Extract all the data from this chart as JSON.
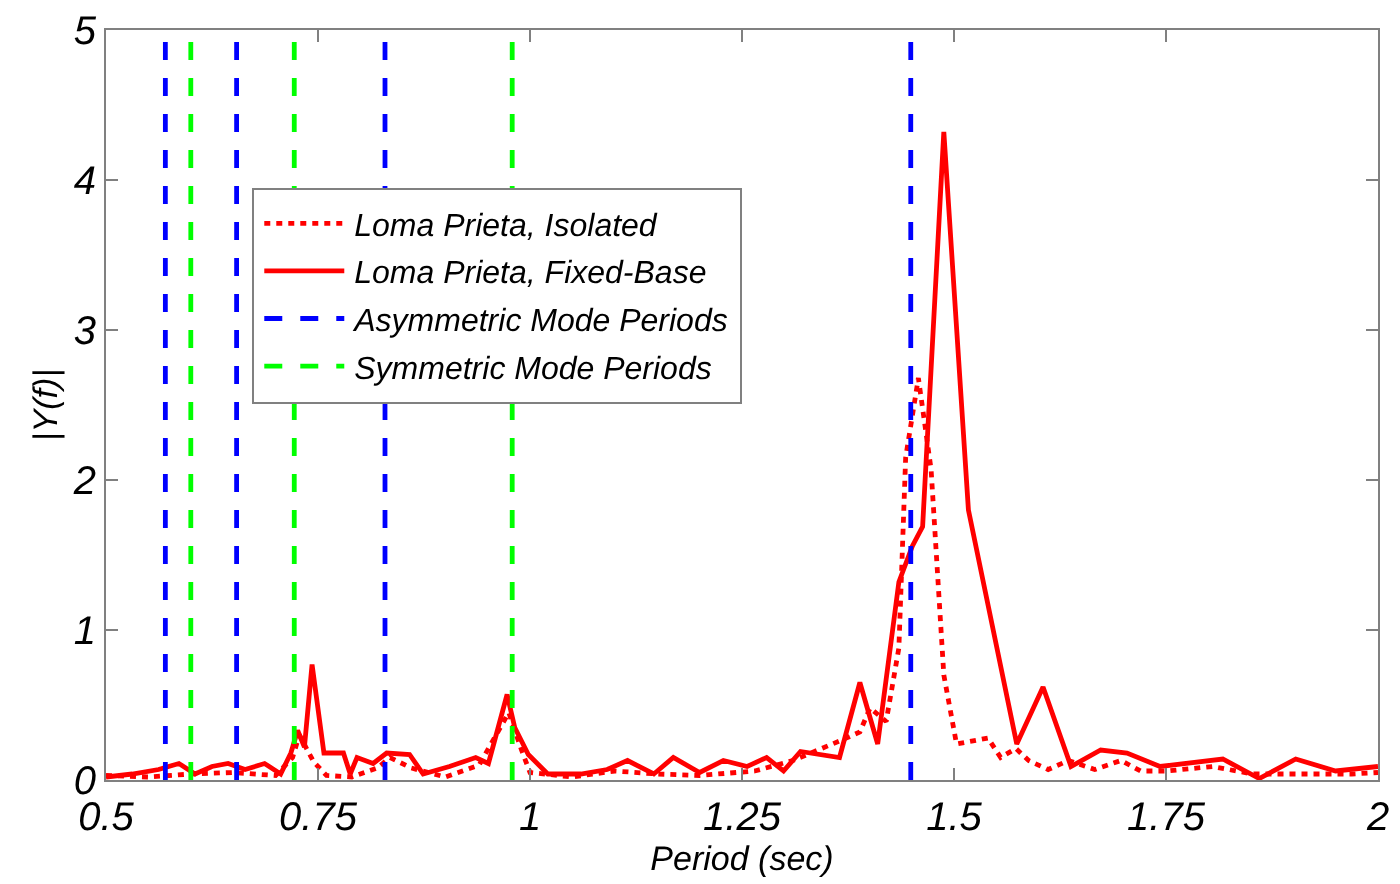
{
  "chart_data": {
    "type": "line",
    "xlabel": "Period (sec)",
    "ylabel": "|Y(f)|",
    "xlim": [
      0.5,
      2
    ],
    "xticks": [
      0.5,
      0.75,
      1,
      1.25,
      1.5,
      1.75,
      2
    ],
    "ylim": [
      0,
      5
    ],
    "yticks": [
      0,
      1,
      2,
      3,
      4,
      5
    ],
    "legend": "left",
    "marker": "none",
    "series": [
      {
        "name": "Loma Prieta, Isolated",
        "color": "#ff0000",
        "line_style": "dotted",
        "x": [
          0.5,
          0.55,
          0.6,
          0.65,
          0.7,
          0.72,
          0.728,
          0.745,
          0.76,
          0.79,
          0.82,
          0.835,
          0.86,
          0.9,
          0.94,
          0.965,
          0.975,
          0.99,
          1.0,
          1.05,
          1.1,
          1.15,
          1.2,
          1.265,
          1.31,
          1.365,
          1.389,
          1.401,
          1.42,
          1.435,
          1.443,
          1.458,
          1.473,
          1.488,
          1.503,
          1.54,
          1.555,
          1.573,
          1.588,
          1.611,
          1.635,
          1.666,
          1.697,
          1.72,
          1.751,
          1.805,
          1.852,
          1.899,
          1.969,
          2.0
        ],
        "values": [
          0.03,
          0.02,
          0.04,
          0.05,
          0.03,
          0.15,
          0.3,
          0.12,
          0.03,
          0.02,
          0.08,
          0.15,
          0.08,
          0.02,
          0.1,
          0.35,
          0.45,
          0.2,
          0.05,
          0.02,
          0.06,
          0.04,
          0.03,
          0.06,
          0.13,
          0.26,
          0.32,
          0.48,
          0.39,
          0.88,
          2.15,
          2.68,
          2.07,
          0.7,
          0.24,
          0.28,
          0.15,
          0.21,
          0.13,
          0.07,
          0.13,
          0.07,
          0.13,
          0.06,
          0.06,
          0.09,
          0.04,
          0.04,
          0.04,
          0.05
        ]
      },
      {
        "name": "Loma Prieta, Fixed-Base",
        "color": "#ff0000",
        "line_style": "solid",
        "x": [
          0.5,
          0.531,
          0.562,
          0.586,
          0.605,
          0.625,
          0.644,
          0.664,
          0.687,
          0.706,
          0.718,
          0.726,
          0.734,
          0.743,
          0.757,
          0.78,
          0.788,
          0.796,
          0.815,
          0.831,
          0.858,
          0.874,
          0.905,
          0.936,
          0.951,
          0.973,
          0.982,
          0.998,
          1.021,
          1.06,
          1.091,
          1.115,
          1.146,
          1.169,
          1.2,
          1.228,
          1.256,
          1.279,
          1.299,
          1.319,
          1.365,
          1.389,
          1.41,
          1.435,
          1.451,
          1.463,
          1.488,
          1.517,
          1.574,
          1.605,
          1.638,
          1.673,
          1.704,
          1.743,
          1.817,
          1.86,
          1.903,
          1.95,
          2.0
        ],
        "values": [
          0.02,
          0.04,
          0.07,
          0.11,
          0.04,
          0.09,
          0.11,
          0.07,
          0.11,
          0.04,
          0.18,
          0.33,
          0.22,
          0.77,
          0.18,
          0.18,
          0.04,
          0.15,
          0.11,
          0.18,
          0.17,
          0.04,
          0.09,
          0.15,
          0.11,
          0.57,
          0.35,
          0.17,
          0.04,
          0.04,
          0.07,
          0.13,
          0.04,
          0.15,
          0.05,
          0.13,
          0.09,
          0.15,
          0.06,
          0.19,
          0.15,
          0.65,
          0.24,
          1.32,
          1.56,
          1.69,
          4.32,
          1.8,
          0.24,
          0.62,
          0.09,
          0.2,
          0.18,
          0.09,
          0.14,
          0.01,
          0.14,
          0.06,
          0.09
        ]
      },
      {
        "name": "Asymmetric Mode Periods",
        "color": "#0000ff",
        "line_style": "dashed",
        "x": [
          0.57,
          0.57,
          null,
          0.654,
          0.654,
          null,
          0.829,
          0.829,
          null,
          1.449,
          1.449
        ],
        "values": [
          0,
          5,
          null,
          0,
          5,
          null,
          0,
          5,
          null,
          0,
          5
        ]
      },
      {
        "name": "Symmetric Mode Periods",
        "color": "#00ff00",
        "line_style": "dashed",
        "x": [
          0.6,
          0.6,
          null,
          0.722,
          0.722,
          null,
          0.979,
          0.979
        ],
        "values": [
          0,
          5,
          null,
          0,
          5,
          null,
          0,
          5
        ]
      }
    ]
  }
}
